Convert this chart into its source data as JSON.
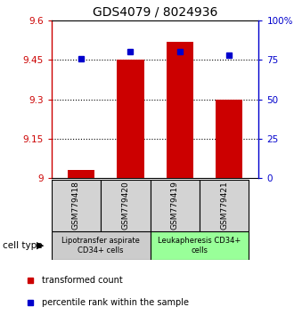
{
  "title": "GDS4079 / 8024936",
  "samples": [
    "GSM779418",
    "GSM779420",
    "GSM779419",
    "GSM779421"
  ],
  "bar_values": [
    9.03,
    9.45,
    9.52,
    9.3
  ],
  "percentile_values": [
    75.5,
    80,
    80,
    78
  ],
  "ylim_left": [
    9.0,
    9.6
  ],
  "ylim_right": [
    0,
    100
  ],
  "yticks_left": [
    9.0,
    9.15,
    9.3,
    9.45,
    9.6
  ],
  "ytick_labels_left": [
    "9",
    "9.15",
    "9.3",
    "9.45",
    "9.6"
  ],
  "yticks_right": [
    0,
    25,
    50,
    75,
    100
  ],
  "ytick_labels_right": [
    "0",
    "25",
    "50",
    "75",
    "100%"
  ],
  "bar_color": "#cc0000",
  "marker_color": "#0000cc",
  "bar_width": 0.55,
  "cell_type_groups": [
    {
      "label": "Lipotransfer aspirate\nCD34+ cells",
      "samples": [
        0,
        1
      ],
      "color": "#cccccc"
    },
    {
      "label": "Leukapheresis CD34+\ncells",
      "samples": [
        2,
        3
      ],
      "color": "#99ff99"
    }
  ],
  "cell_type_label": "cell type",
  "legend_items": [
    {
      "color": "#cc0000",
      "marker": "s",
      "label": "transformed count"
    },
    {
      "color": "#0000cc",
      "marker": "s",
      "label": "percentile rank within the sample"
    }
  ],
  "title_fontsize": 10,
  "tick_fontsize": 7.5,
  "sample_fontsize": 6.5,
  "celltype_fontsize": 6,
  "legend_fontsize": 7
}
